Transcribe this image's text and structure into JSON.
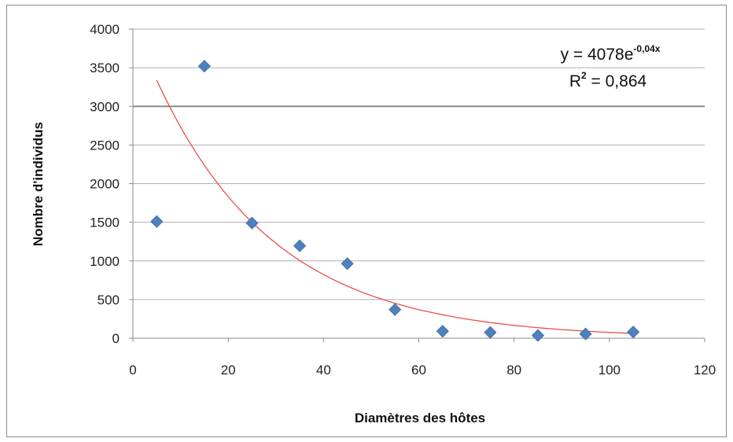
{
  "chart_data": {
    "type": "scatter",
    "title": "",
    "xlabel": "Diamètres des hôtes",
    "ylabel": "Nombre d'individus",
    "xlim": [
      0,
      120
    ],
    "ylim": [
      0,
      4000
    ],
    "xticks": [
      0,
      20,
      40,
      60,
      80,
      100,
      120
    ],
    "yticks": [
      0,
      500,
      1000,
      1500,
      2000,
      2500,
      3000,
      3500,
      4000
    ],
    "grid": "horizontal",
    "legend": "none",
    "series": [
      {
        "marker": "diamond",
        "color": "#4f81bd",
        "x": [
          5,
          15,
          25,
          35,
          45,
          55,
          65,
          75,
          85,
          95,
          105
        ],
        "y": [
          1510,
          3520,
          1490,
          1195,
          965,
          370,
          90,
          75,
          35,
          55,
          80
        ]
      }
    ],
    "trendline": {
      "type": "exponential",
      "a": 4078,
      "b": -0.04,
      "x_range": [
        5,
        105
      ],
      "color": "#e8504a",
      "equation_main": "y = 4078e",
      "equation_exp": "-0,04x",
      "r2_label": "R",
      "r2_exp": "2",
      "r2_value": " = 0,864"
    }
  }
}
